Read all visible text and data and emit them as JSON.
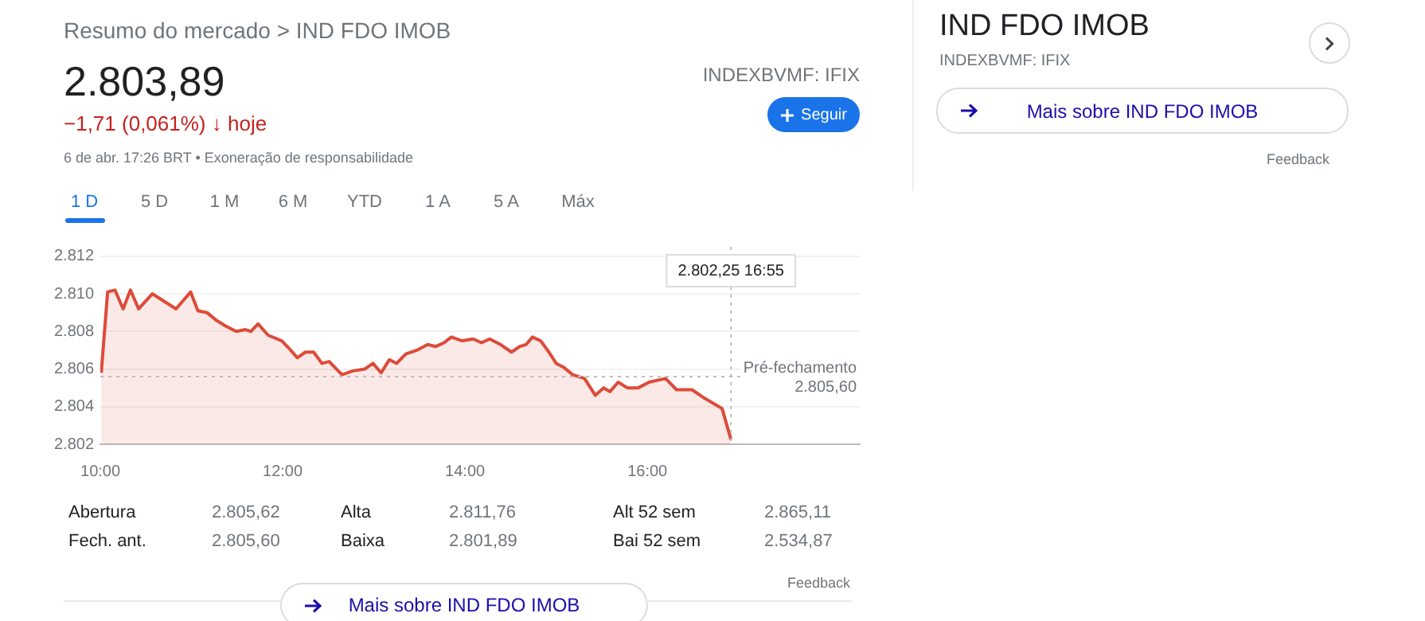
{
  "chart_data": {
    "type": "area",
    "title": "Resumo do mercado > IND FDO IMOB",
    "x": [
      10.01,
      10.08,
      10.16,
      10.25,
      10.33,
      10.42,
      10.57,
      10.83,
      10.99,
      11.07,
      11.17,
      11.27,
      11.37,
      11.49,
      11.59,
      11.65,
      11.73,
      11.84,
      11.99,
      12.07,
      12.16,
      12.25,
      12.34,
      12.43,
      12.51,
      12.65,
      12.77,
      12.9,
      12.99,
      13.08,
      13.17,
      13.25,
      13.35,
      13.47,
      13.59,
      13.68,
      13.77,
      13.85,
      13.97,
      14.09,
      14.18,
      14.27,
      14.39,
      14.51,
      14.6,
      14.67,
      14.74,
      14.83,
      14.92,
      15.0,
      15.08,
      15.18,
      15.31,
      15.43,
      15.52,
      15.59,
      15.68,
      15.78,
      15.9,
      16.02,
      16.2,
      16.32,
      16.49,
      16.61,
      16.82,
      16.917
    ],
    "series": [
      {
        "color": "#dd4b39",
        "values": [
          2805.8,
          2810.1,
          2810.2,
          2809.2,
          2810.2,
          2809.2,
          2810.0,
          2809.2,
          2810.1,
          2809.1,
          2809.0,
          2808.6,
          2808.3,
          2808.0,
          2808.1,
          2808.0,
          2808.4,
          2807.8,
          2807.5,
          2807.1,
          2806.6,
          2806.9,
          2806.9,
          2806.3,
          2806.4,
          2805.7,
          2805.9,
          2806.0,
          2806.3,
          2805.8,
          2806.5,
          2806.3,
          2806.8,
          2807.0,
          2807.3,
          2807.2,
          2807.4,
          2807.7,
          2807.5,
          2807.6,
          2807.4,
          2807.6,
          2807.3,
          2806.9,
          2807.2,
          2807.3,
          2807.7,
          2807.5,
          2806.9,
          2806.3,
          2806.1,
          2805.7,
          2805.5,
          2804.6,
          2805.0,
          2804.8,
          2805.3,
          2805.0,
          2805.0,
          2805.3,
          2805.5,
          2804.9,
          2804.9,
          2804.5,
          2803.9,
          2802.25
        ]
      }
    ],
    "xlim": [
      10,
      18.33
    ],
    "xticks": [
      {
        "value": 10,
        "label": "10:00"
      },
      {
        "value": 12,
        "label": "12:00"
      },
      {
        "value": 14,
        "label": "14:00"
      },
      {
        "value": 16,
        "label": "16:00"
      }
    ],
    "ylim": [
      2802,
      2812.5
    ],
    "yticks": [
      {
        "value": 2802,
        "label": "2.802"
      },
      {
        "value": 2804,
        "label": "2.804"
      },
      {
        "value": 2806,
        "label": "2.806"
      },
      {
        "value": 2808,
        "label": "2.808"
      },
      {
        "value": 2810,
        "label": "2.810"
      },
      {
        "value": 2812,
        "label": "2.812"
      }
    ],
    "grid": "y",
    "marker": "none",
    "line_style": "solid",
    "legend": false,
    "ref_lines": [
      {
        "axis": "y",
        "value": 2805.6,
        "label": "Pré-fechamento\n2.805,60",
        "color": "#bbbbbb",
        "line_style": "dotted"
      },
      {
        "axis": "x",
        "value": 16.917,
        "color": "#bbbbbb",
        "line_style": "dotted"
      }
    ],
    "annotations": [
      "2.802,25 16:55",
      "2.803,89",
      "−1,71 (0,061%) ↓ hoje",
      "6 de abr. 17:26 BRT • Exoneração de responsabilidade",
      "INDEXBVMF: IFIX",
      "Seguir",
      "1 D",
      "5 D",
      "1 M",
      "6 M",
      "YTD",
      "1 A",
      "5 A",
      "Máx",
      "Abertura",
      "2.805,62",
      "Alta",
      "2.811,76",
      "Alt 52 sem",
      "2.865,11",
      "Fech. ant.",
      "2.805,60",
      "Baixa",
      "2.801,89",
      "Bai 52 sem",
      "2.534,87",
      "Feedback",
      "Mais sobre IND FDO IMOB",
      "IND FDO IMOB",
      "INDEXBVMF: IFIX",
      "Mais sobre IND FDO IMOB",
      "Feedback"
    ]
  }
}
